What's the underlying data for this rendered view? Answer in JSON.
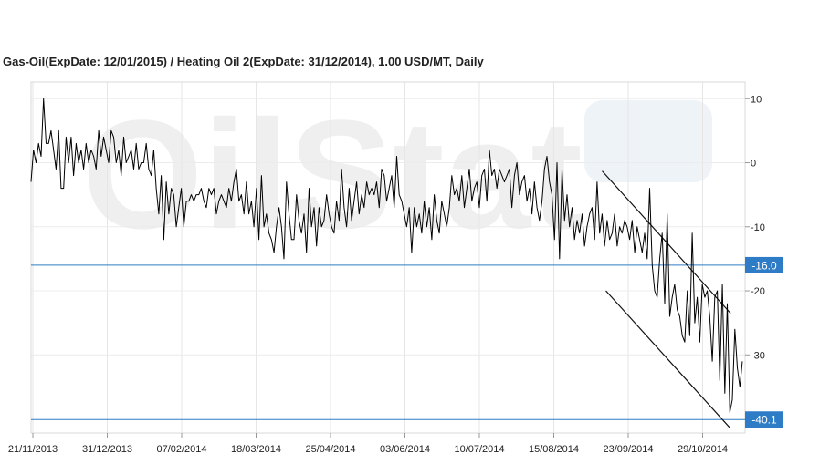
{
  "chart_data": {
    "type": "line",
    "title": "Gas-Oil(ExpDate: 12/01/2015) / Heating Oil 2(ExpDate: 31/12/2014), 1.00 USD/MT, Daily",
    "watermark": "OilStat",
    "x_tick_labels": [
      "21/11/2013",
      "31/12/2013",
      "07/02/2014",
      "18/03/2014",
      "25/04/2014",
      "03/06/2014",
      "10/07/2014",
      "15/08/2014",
      "23/09/2014",
      "29/10/2014"
    ],
    "y_ticks": [
      10,
      0,
      -10,
      -20,
      -30
    ],
    "ylim": [
      -42.2,
      12.6
    ],
    "grid": true,
    "y_axis_side": "right",
    "series": [
      {
        "color": "#000000",
        "values": [
          -3,
          2,
          0,
          3,
          1,
          10,
          3,
          3,
          5,
          2,
          -1,
          5,
          -4,
          -4,
          4,
          0,
          4,
          -2,
          3,
          0,
          2,
          -1,
          3,
          0,
          2,
          1,
          -1,
          5,
          1,
          4,
          2,
          0,
          5,
          4,
          0,
          2,
          -2,
          4,
          0,
          1,
          2,
          -1,
          3,
          -1,
          0,
          0,
          3,
          -1,
          -2,
          2,
          -4,
          -8,
          -2,
          -12,
          -3,
          -8,
          -4,
          -5,
          -10,
          -7,
          -4,
          -10,
          -6,
          -6,
          -5,
          -6,
          -5,
          -5,
          -4,
          -6,
          -7,
          -4,
          -5,
          -4,
          -8,
          -6,
          -5,
          -6,
          -7,
          -4,
          -6,
          -3,
          -1,
          -6,
          -5,
          -8,
          -3,
          -8,
          -6,
          -10,
          -4,
          -12,
          -2,
          -10,
          -8,
          -11,
          -12,
          -14,
          -10,
          -7,
          -10,
          -15,
          -3,
          -8,
          -12,
          -12,
          -5,
          -9,
          -11,
          -8,
          -14,
          -4,
          -10,
          -7,
          -13,
          -7,
          -10,
          -9,
          -5,
          -8,
          -10,
          -11,
          -6,
          -9,
          -1,
          -7,
          -10,
          -4,
          -9,
          -6,
          -3,
          -8,
          -5,
          -7,
          -3,
          -5,
          -4,
          -5,
          -3,
          -7,
          -1,
          -2,
          -6,
          -4,
          -2,
          -7,
          1,
          -5,
          -6,
          -8,
          -10,
          -7,
          -14,
          -7,
          -10,
          -8,
          -11,
          -6,
          -10,
          -7,
          -12,
          -5,
          -9,
          -11,
          -6,
          -8,
          -10,
          -7,
          -2,
          -5,
          -4,
          -6,
          -2,
          -7,
          -4,
          -1,
          -6,
          -4,
          -3,
          -7,
          -2,
          -1,
          -6,
          2,
          -2,
          -1,
          -4,
          -1,
          -2,
          -3,
          -2,
          -1,
          -7,
          -2,
          0,
          -5,
          -3,
          -2,
          -6,
          -4,
          -8,
          -3,
          -7,
          -9,
          -6,
          -1,
          1,
          -3,
          -5,
          -12,
          0,
          -15,
          -1,
          -9,
          -5,
          -10,
          -7,
          -12,
          -9,
          -11,
          -8,
          -13,
          -10,
          -8,
          -7,
          -12,
          -3,
          -11,
          -8,
          -13,
          -9,
          -12,
          -11,
          -8,
          -13,
          -10,
          -11,
          -9,
          -10,
          -12,
          -9,
          -14,
          -10,
          -12,
          -14,
          -11,
          -15,
          -4,
          -16,
          -20,
          -21,
          -15,
          -11,
          -22,
          -8,
          -24,
          -21,
          -19,
          -23,
          -24,
          -27,
          -28,
          -20,
          -27,
          -11,
          -25,
          -21,
          -28,
          -19,
          -21,
          -20,
          -24,
          -31,
          -21,
          -20,
          -34,
          -19,
          -36,
          -22,
          -39,
          -37,
          -26,
          -32,
          -35,
          -31
        ]
      }
    ],
    "reference_lines": [
      {
        "value": -16.0,
        "label": "-16.0",
        "color": "#2e7cc6"
      },
      {
        "value": -40.1,
        "label": "-40.1",
        "color": "#2e7cc6"
      }
    ],
    "trend_channel": {
      "upper": [
        {
          "x": "2014-09-23",
          "y": -1.3
        },
        {
          "x": "2014-12-01",
          "y": -23.5
        }
      ],
      "lower": [
        {
          "x": "2014-09-25",
          "y": -20
        },
        {
          "x": "2014-12-01",
          "y": -41.5
        }
      ]
    }
  }
}
